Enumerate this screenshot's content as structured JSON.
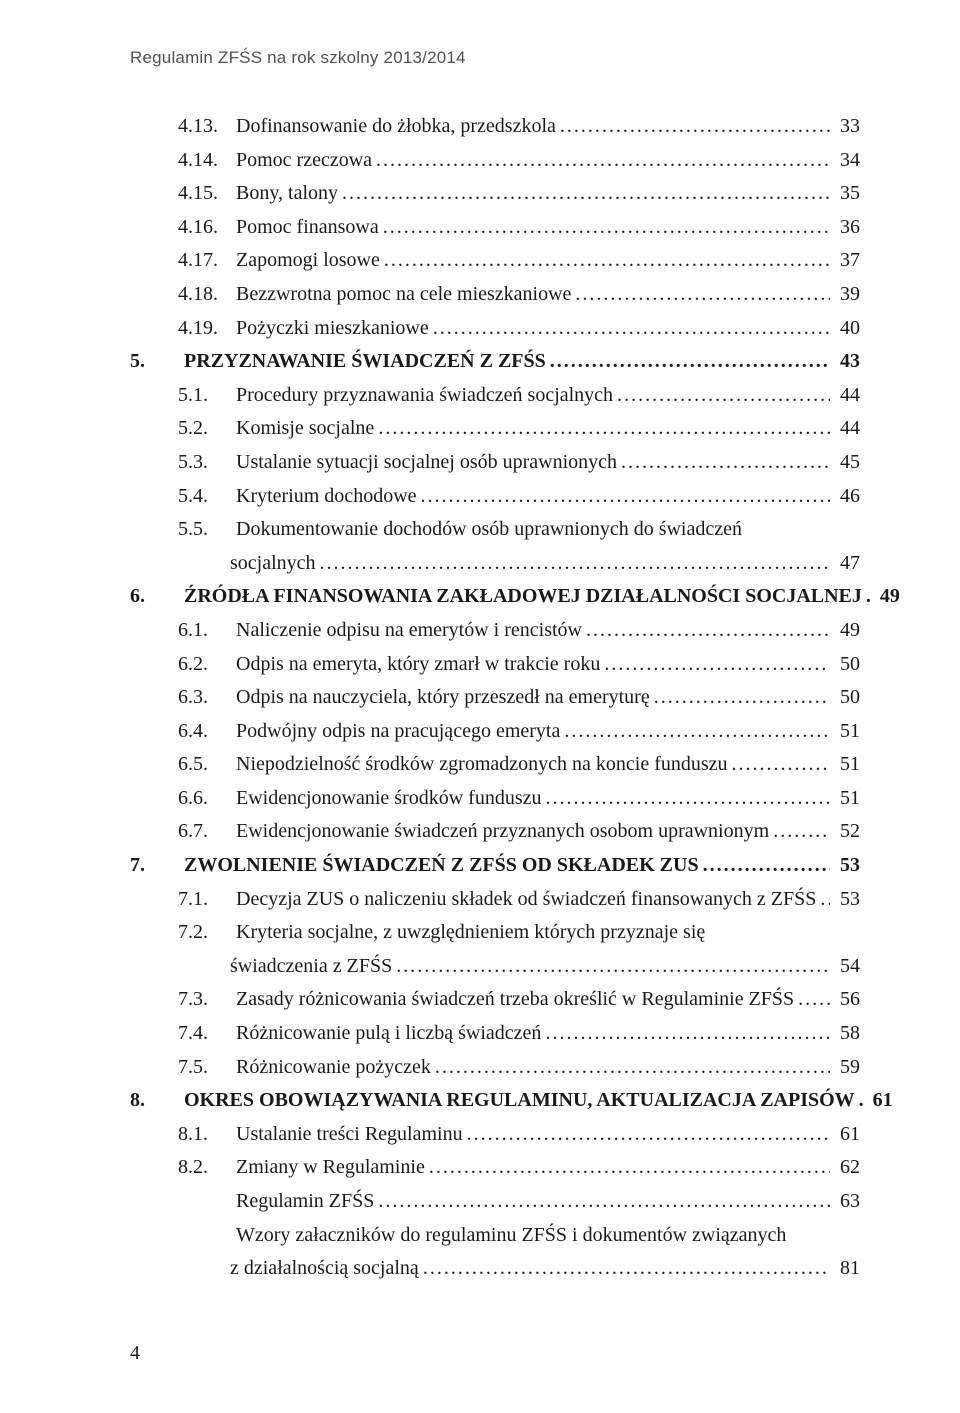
{
  "header": "Regulamin ZFŚS na rok szkolny 2013/2014",
  "page_number": "4",
  "entries": [
    {
      "indent": 1,
      "bold": false,
      "num": "4.13.",
      "text": "Dofinansowanie do żłobka, przedszkola",
      "page": "33"
    },
    {
      "indent": 1,
      "bold": false,
      "num": "4.14.",
      "text": "Pomoc rzeczowa",
      "page": "34"
    },
    {
      "indent": 1,
      "bold": false,
      "num": "4.15.",
      "text": "Bony, talony",
      "page": "35"
    },
    {
      "indent": 1,
      "bold": false,
      "num": "4.16.",
      "text": "Pomoc finansowa",
      "page": "36"
    },
    {
      "indent": 1,
      "bold": false,
      "num": "4.17.",
      "text": "Zapomogi losowe",
      "page": "37"
    },
    {
      "indent": 1,
      "bold": false,
      "num": "4.18.",
      "text": "Bezzwrotna pomoc na cele mieszkaniowe",
      "page": "39"
    },
    {
      "indent": 1,
      "bold": false,
      "num": "4.19.",
      "text": "Pożyczki mieszkaniowe",
      "page": "40"
    },
    {
      "indent": 0,
      "bold": true,
      "num": "5.",
      "text": "PRZYZNAWANIE ŚWIADCZEŃ Z ZFŚS",
      "page": "43"
    },
    {
      "indent": 1,
      "bold": false,
      "num": "5.1.",
      "text": "Procedury przyznawania świadczeń socjalnych",
      "page": "44"
    },
    {
      "indent": 1,
      "bold": false,
      "num": "5.2.",
      "text": "Komisje socjalne",
      "page": "44"
    },
    {
      "indent": 1,
      "bold": false,
      "num": "5.3.",
      "text": "Ustalanie sytuacji socjalnej osób uprawnionych",
      "page": "45"
    },
    {
      "indent": 1,
      "bold": false,
      "num": "5.4.",
      "text": "Kryterium dochodowe",
      "page": "46"
    },
    {
      "indent": 1,
      "bold": false,
      "num": "5.5.",
      "text": "Dokumentowanie dochodów osób uprawnionych do świadczeń",
      "wrap": "socjalnych",
      "page": "47"
    },
    {
      "indent": 0,
      "bold": true,
      "num": "6.",
      "text": "ŹRÓDŁA FINANSOWANIA ZAKŁADOWEJ DZIAŁALNOŚCI SOCJALNEJ",
      "page": "49"
    },
    {
      "indent": 1,
      "bold": false,
      "num": "6.1.",
      "text": "Naliczenie odpisu na emerytów i rencistów",
      "page": "49"
    },
    {
      "indent": 1,
      "bold": false,
      "num": "6.2.",
      "text": "Odpis na emeryta, który zmarł w trakcie roku",
      "page": "50"
    },
    {
      "indent": 1,
      "bold": false,
      "num": "6.3.",
      "text": "Odpis na nauczyciela, który przeszedł na emeryturę",
      "page": "50"
    },
    {
      "indent": 1,
      "bold": false,
      "num": "6.4.",
      "text": "Podwójny odpis na pracującego emeryta",
      "page": "51"
    },
    {
      "indent": 1,
      "bold": false,
      "num": "6.5.",
      "text": "Niepodzielność środków zgromadzonych na koncie funduszu",
      "page": "51"
    },
    {
      "indent": 1,
      "bold": false,
      "num": "6.6.",
      "text": "Ewidencjonowanie środków funduszu",
      "page": "51"
    },
    {
      "indent": 1,
      "bold": false,
      "num": "6.7.",
      "text": "Ewidencjonowanie świadczeń przyznanych osobom uprawnionym",
      "page": "52"
    },
    {
      "indent": 0,
      "bold": true,
      "num": "7.",
      "text": "ZWOLNIENIE ŚWIADCZEŃ Z ZFŚS OD SKŁADEK ZUS",
      "page": "53"
    },
    {
      "indent": 1,
      "bold": false,
      "num": "7.1.",
      "text": "Decyzja ZUS o naliczeniu składek od świadczeń finansowanych z ZFŚS",
      "page": "53"
    },
    {
      "indent": 1,
      "bold": false,
      "num": "7.2.",
      "text": "Kryteria socjalne, z uwzględnieniem których przyznaje się",
      "wrap": "świadczenia z ZFŚS",
      "page": "54"
    },
    {
      "indent": 1,
      "bold": false,
      "num": "7.3.",
      "text": "Zasady różnicowania świadczeń trzeba określić w Regulaminie ZFŚS",
      "page": "56"
    },
    {
      "indent": 1,
      "bold": false,
      "num": "7.4.",
      "text": "Różnicowanie pulą i liczbą świadczeń",
      "page": "58"
    },
    {
      "indent": 1,
      "bold": false,
      "num": "7.5.",
      "text": "Różnicowanie pożyczek",
      "page": "59"
    },
    {
      "indent": 0,
      "bold": true,
      "num": "8.",
      "text": "OKRES OBOWIĄZYWANIA REGULAMINU, AKTUALIZACJA ZAPISÓW",
      "page": "61"
    },
    {
      "indent": 1,
      "bold": false,
      "num": "8.1.",
      "text": "Ustalanie treści Regulaminu",
      "page": "61"
    },
    {
      "indent": 1,
      "bold": false,
      "num": "8.2.",
      "text": "Zmiany w Regulaminie",
      "page": "62"
    },
    {
      "indent": 1,
      "bold": false,
      "num": "",
      "text": "Regulamin ZFŚS",
      "page": "63"
    },
    {
      "indent": 1,
      "bold": false,
      "num": "",
      "text": "Wzory załaczników do regulaminu ZFŚS i dokumentów związanych",
      "wrap": "z działalnością socjalną",
      "page": "81"
    }
  ]
}
